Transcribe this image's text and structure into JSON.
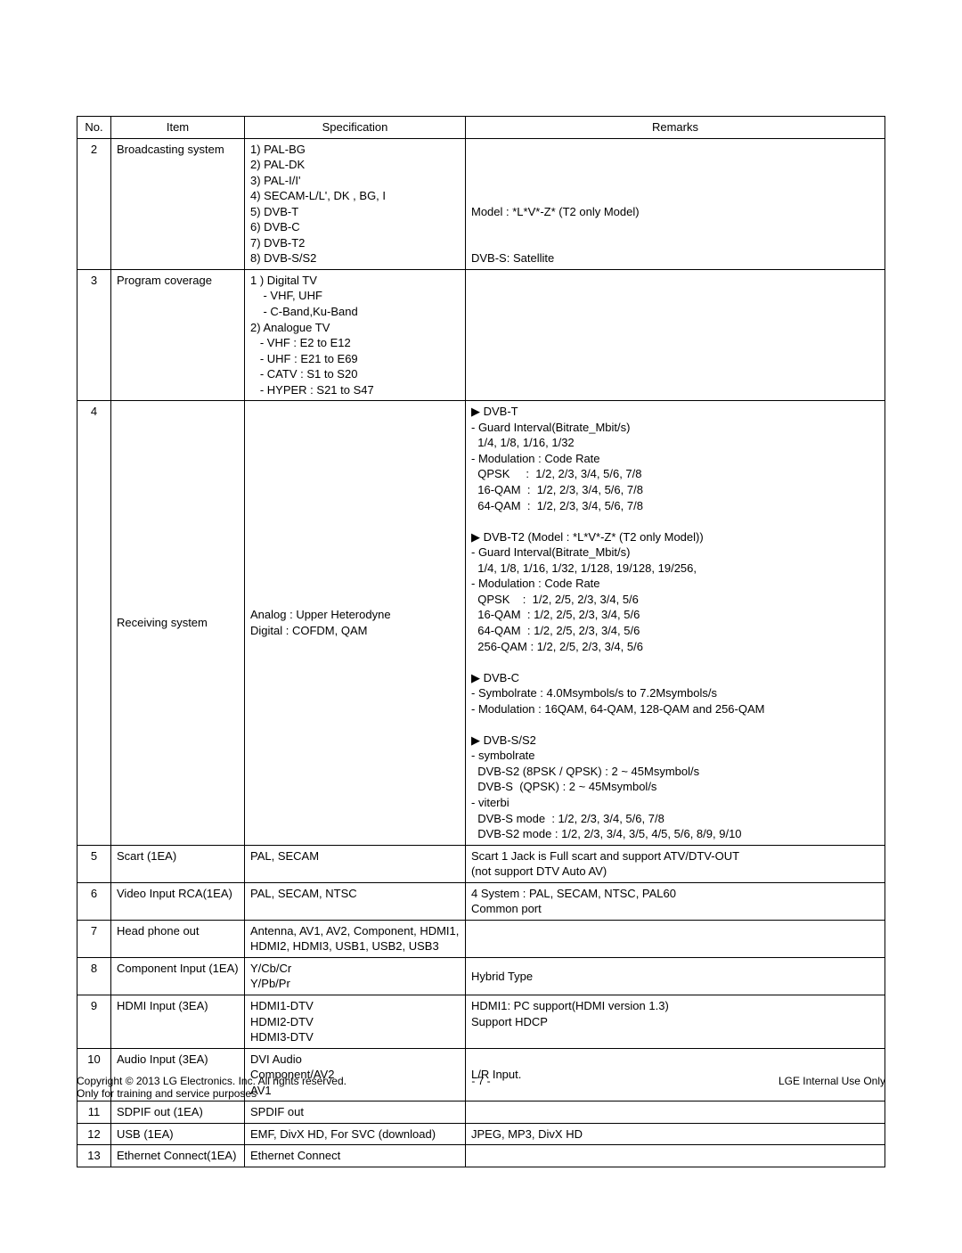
{
  "table": {
    "headers": {
      "no": "No.",
      "item": "Item",
      "spec": "Specification",
      "remarks": "Remarks"
    },
    "rows": [
      {
        "no": "2",
        "item": "Broadcasting system",
        "spec": "1) PAL-BG\n2) PAL-DK\n3) PAL-I/I'\n4) SECAM-L/L', DK , BG, I\n5) DVB-T\n6) DVB-C\n7) DVB-T2\n8) DVB-S/S2",
        "remarks": "\n\n\n\nModel : *L*V*-Z* (T2 only Model)\n\n\nDVB-S: Satellite"
      },
      {
        "no": "3",
        "item": "Program coverage",
        "spec": "1 ) Digital TV\n    - VHF, UHF\n    - C-Band,Ku-Band\n2) Analogue TV\n   - VHF : E2 to E12\n   - UHF : E21 to E69\n   - CATV : S1 to S20\n   - HYPER : S21 to S47",
        "remarks": ""
      },
      {
        "no": "4",
        "item": "Receiving system",
        "spec": "Analog : Upper Heterodyne\nDigital : COFDM, QAM",
        "remarks": "▶ DVB-T\n- Guard Interval(Bitrate_Mbit/s)\n  1/4, 1/8, 1/16, 1/32\n- Modulation : Code Rate\n  QPSK     :  1/2, 2/3, 3/4, 5/6, 7/8\n  16-QAM  :  1/2, 2/3, 3/4, 5/6, 7/8\n  64-QAM  :  1/2, 2/3, 3/4, 5/6, 7/8\n\n▶ DVB-T2 (Model : *L*V*-Z* (T2 only Model))\n- Guard Interval(Bitrate_Mbit/s)\n  1/4, 1/8, 1/16, 1/32, 1/128, 19/128, 19/256,\n- Modulation : Code Rate\n  QPSK    :  1/2, 2/5, 2/3, 3/4, 5/6\n  16-QAM  : 1/2, 2/5, 2/3, 3/4, 5/6\n  64-QAM  : 1/2, 2/5, 2/3, 3/4, 5/6\n  256-QAM : 1/2, 2/5, 2/3, 3/4, 5/6\n\n▶ DVB-C\n- Symbolrate : 4.0Msymbols/s to 7.2Msymbols/s\n- Modulation : 16QAM, 64-QAM, 128-QAM and 256-QAM\n\n▶ DVB-S/S2\n- symbolrate\n  DVB-S2 (8PSK / QPSK) : 2 ~ 45Msymbol/s\n  DVB-S  (QPSK) : 2 ~ 45Msymbol/s\n- viterbi\n  DVB-S mode  : 1/2, 2/3, 3/4, 5/6, 7/8\n  DVB-S2 mode : 1/2, 2/3, 3/4, 3/5, 4/5, 5/6, 8/9, 9/10"
      },
      {
        "no": "5",
        "item": "Scart (1EA)",
        "spec": "PAL, SECAM",
        "remarks": "Scart 1 Jack is Full scart and support ATV/DTV-OUT\n(not support DTV Auto AV)"
      },
      {
        "no": "6",
        "item": "Video Input RCA(1EA)",
        "spec": "PAL, SECAM, NTSC",
        "remarks": "4 System : PAL, SECAM, NTSC, PAL60\nCommon port"
      },
      {
        "no": "7",
        "item": "Head phone out",
        "spec": "Antenna, AV1, AV2, Component, HDMI1, HDMI2, HDMI3, USB1, USB2, USB3",
        "remarks": ""
      },
      {
        "no": "8",
        "item": "Component Input (1EA)",
        "spec": "Y/Cb/Cr\nY/Pb/Pr",
        "remarks": "Hybrid Type"
      },
      {
        "no": "9",
        "item": "HDMI Input (3EA)",
        "spec": "HDMI1-DTV\nHDMI2-DTV\nHDMI3-DTV",
        "remarks": "HDMI1: PC support(HDMI version 1.3)\nSupport HDCP"
      },
      {
        "no": "10",
        "item": "Audio Input (3EA)",
        "spec": "DVI Audio\nComponent/AV2\nAV1",
        "remarks": "L/R Input."
      },
      {
        "no": "11",
        "item": "SDPIF out (1EA)",
        "spec": "SPDIF out",
        "remarks": ""
      },
      {
        "no": "12",
        "item": "USB (1EA)",
        "spec": "EMF, DivX HD, For SVC (download)",
        "remarks": "JPEG, MP3, DivX HD"
      },
      {
        "no": "13",
        "item": "Ethernet Connect(1EA)",
        "spec": "Ethernet Connect",
        "remarks": ""
      }
    ]
  },
  "footer": {
    "left_line1": "Copyright  © 2013  LG Electronics. Inc. All rights reserved.",
    "left_line2": "Only for training and service purposes",
    "page_number": "- 7 -",
    "right": "LGE Internal Use Only"
  }
}
